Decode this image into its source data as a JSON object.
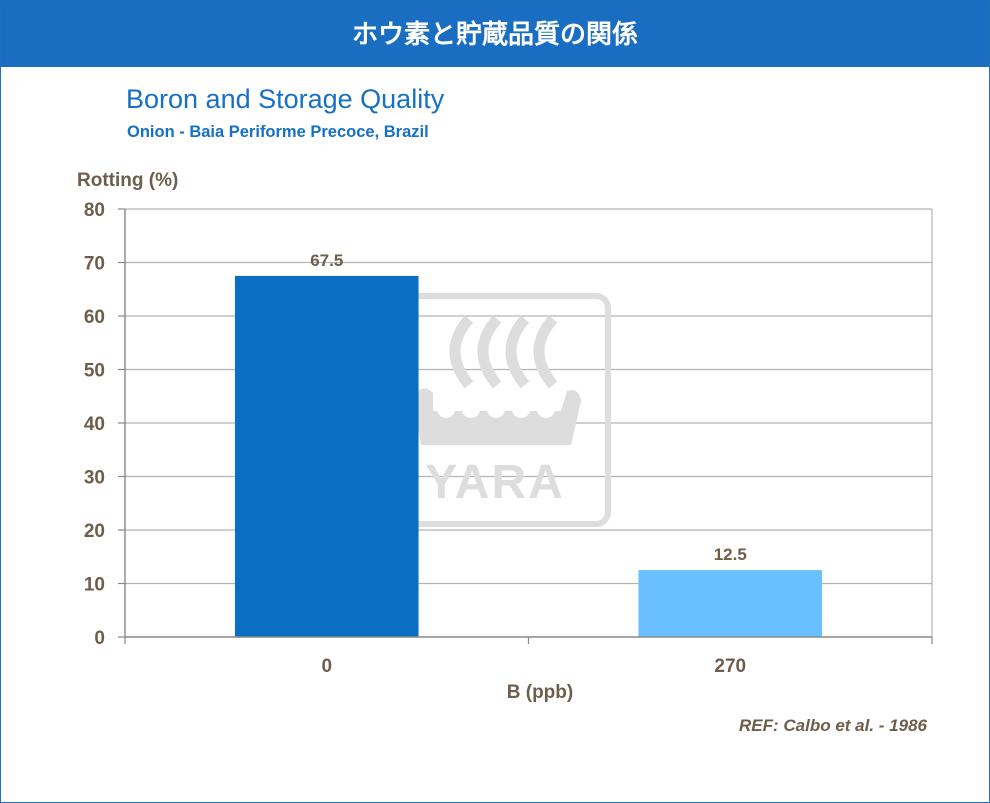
{
  "header": {
    "title": "ホウ素と貯蔵品質の関係"
  },
  "colors": {
    "header_bg": "#1a6ec2",
    "title": "#1570c6",
    "axis_text": "#6d5e4c",
    "bar_0": "#0a6fc2",
    "bar_1": "#69bfff",
    "grid": "#b3b3b3",
    "watermark": "#dddddd"
  },
  "watermark": {
    "text": "YARA",
    "icon": "viking-ship-icon"
  },
  "reference": "REF: Calbo et al. - 1986",
  "chart_data": {
    "type": "bar",
    "title": "Boron and Storage Quality",
    "subtitle": "Onion - Baia Periforme Precoce, Brazil",
    "xlabel": "B (ppb)",
    "ylabel": "Rotting (%)",
    "categories": [
      "0",
      "270"
    ],
    "values": [
      67.5,
      12.5
    ],
    "value_labels": [
      "67.5",
      "12.5"
    ],
    "ylim": [
      0,
      80
    ],
    "yticks": [
      0,
      10,
      20,
      30,
      40,
      50,
      60,
      70,
      80
    ],
    "grid": true,
    "legend": "none"
  }
}
